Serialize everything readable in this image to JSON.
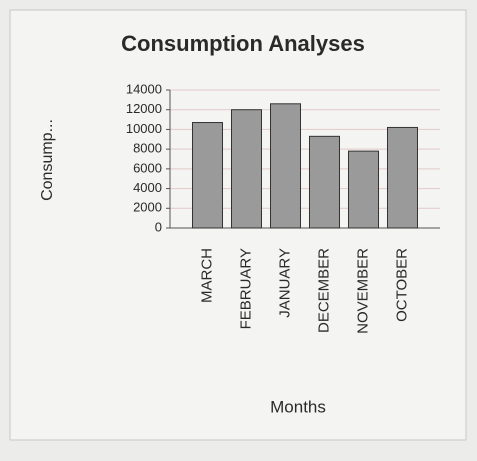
{
  "chart_data": {
    "type": "bar",
    "title": "Consumption Analyses",
    "x_label": "Months",
    "y_label": "Consump...",
    "categories": [
      "MARCH",
      "FEBRUARY",
      "JANUARY",
      "DECEMBER",
      "NOVEMBER",
      "OCTOBER"
    ],
    "values": [
      10700,
      12000,
      12600,
      9300,
      7800,
      10200
    ],
    "color": "#9a9a9a",
    "ylim": [
      0,
      14000
    ],
    "yticks": [
      0,
      2000,
      4000,
      6000,
      8000,
      10000,
      12000,
      14000
    ],
    "grid": true
  }
}
